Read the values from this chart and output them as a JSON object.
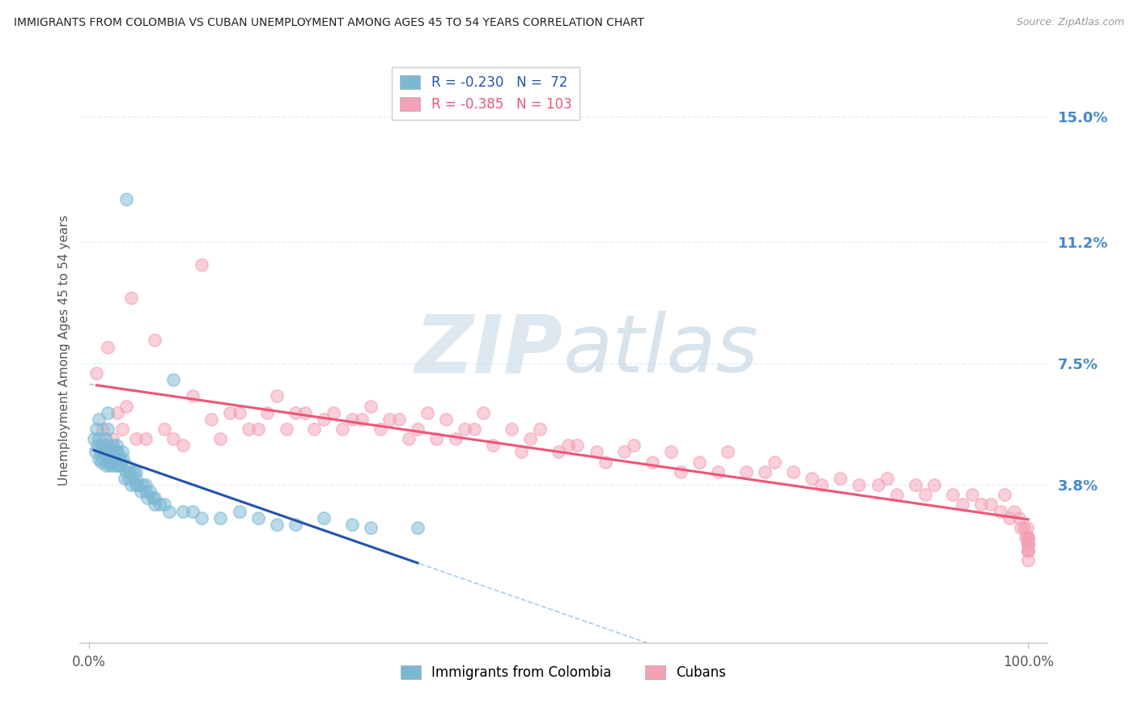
{
  "title": "IMMIGRANTS FROM COLOMBIA VS CUBAN UNEMPLOYMENT AMONG AGES 45 TO 54 YEARS CORRELATION CHART",
  "source": "Source: ZipAtlas.com",
  "ylabel": "Unemployment Among Ages 45 to 54 years",
  "xlim": [
    -0.01,
    1.02
  ],
  "ylim": [
    -0.01,
    0.168
  ],
  "right_ytick_labels": [
    "3.8%",
    "7.5%",
    "11.2%",
    "15.0%"
  ],
  "right_ytick_values": [
    0.038,
    0.075,
    0.112,
    0.15
  ],
  "xtick_labels": [
    "0.0%",
    "100.0%"
  ],
  "xtick_values": [
    0.0,
    1.0
  ],
  "blue_color": "#7BB8D4",
  "pink_color": "#F4A0B5",
  "regression_blue_color": "#2255AA",
  "regression_pink_color": "#EE5577",
  "dashed_color": "#AACCEE",
  "background_color": "#FFFFFF",
  "grid_color": "#DDEEFF",
  "title_color": "#222222",
  "source_color": "#999999",
  "axis_label_color": "#555555",
  "right_label_color": "#4488CC",
  "watermark_zip_color": "#CCDDEE",
  "watermark_atlas_color": "#AABBCC",
  "colombia_x": [
    0.005,
    0.007,
    0.008,
    0.009,
    0.01,
    0.01,
    0.01,
    0.012,
    0.013,
    0.014,
    0.015,
    0.016,
    0.017,
    0.018,
    0.019,
    0.02,
    0.02,
    0.02,
    0.02,
    0.022,
    0.023,
    0.024,
    0.025,
    0.026,
    0.027,
    0.028,
    0.029,
    0.03,
    0.03,
    0.03,
    0.032,
    0.033,
    0.034,
    0.035,
    0.036,
    0.038,
    0.04,
    0.04,
    0.04,
    0.042,
    0.043,
    0.045,
    0.047,
    0.05,
    0.05,
    0.05,
    0.052,
    0.055,
    0.057,
    0.06,
    0.06,
    0.062,
    0.065,
    0.068,
    0.07,
    0.07,
    0.075,
    0.08,
    0.085,
    0.09,
    0.1,
    0.11,
    0.12,
    0.14,
    0.16,
    0.18,
    0.2,
    0.22,
    0.25,
    0.28,
    0.3,
    0.35
  ],
  "colombia_y": [
    0.052,
    0.048,
    0.055,
    0.05,
    0.046,
    0.052,
    0.058,
    0.048,
    0.045,
    0.05,
    0.046,
    0.048,
    0.052,
    0.044,
    0.048,
    0.045,
    0.05,
    0.055,
    0.06,
    0.044,
    0.046,
    0.048,
    0.05,
    0.046,
    0.044,
    0.048,
    0.05,
    0.046,
    0.044,
    0.048,
    0.044,
    0.046,
    0.044,
    0.048,
    0.046,
    0.04,
    0.125,
    0.042,
    0.044,
    0.04,
    0.042,
    0.038,
    0.042,
    0.038,
    0.04,
    0.042,
    0.038,
    0.036,
    0.038,
    0.036,
    0.038,
    0.034,
    0.036,
    0.034,
    0.032,
    0.034,
    0.032,
    0.032,
    0.03,
    0.07,
    0.03,
    0.03,
    0.028,
    0.028,
    0.03,
    0.028,
    0.026,
    0.026,
    0.028,
    0.026,
    0.025,
    0.025
  ],
  "cubans_x": [
    0.008,
    0.015,
    0.02,
    0.025,
    0.03,
    0.035,
    0.04,
    0.045,
    0.05,
    0.06,
    0.07,
    0.08,
    0.09,
    0.1,
    0.11,
    0.12,
    0.13,
    0.14,
    0.15,
    0.16,
    0.17,
    0.18,
    0.19,
    0.2,
    0.21,
    0.22,
    0.23,
    0.24,
    0.25,
    0.26,
    0.27,
    0.28,
    0.29,
    0.3,
    0.31,
    0.32,
    0.33,
    0.34,
    0.35,
    0.36,
    0.37,
    0.38,
    0.39,
    0.4,
    0.41,
    0.42,
    0.43,
    0.45,
    0.46,
    0.47,
    0.48,
    0.5,
    0.51,
    0.52,
    0.54,
    0.55,
    0.57,
    0.58,
    0.6,
    0.62,
    0.63,
    0.65,
    0.67,
    0.68,
    0.7,
    0.72,
    0.73,
    0.75,
    0.77,
    0.78,
    0.8,
    0.82,
    0.84,
    0.85,
    0.86,
    0.88,
    0.89,
    0.9,
    0.92,
    0.93,
    0.94,
    0.95,
    0.96,
    0.97,
    0.975,
    0.98,
    0.985,
    0.99,
    0.992,
    0.995,
    0.997,
    0.999,
    1.0,
    1.0,
    1.0,
    1.0,
    1.0,
    1.0,
    1.0,
    1.0,
    1.0,
    1.0,
    1.0
  ],
  "cubans_y": [
    0.072,
    0.055,
    0.08,
    0.052,
    0.06,
    0.055,
    0.062,
    0.095,
    0.052,
    0.052,
    0.082,
    0.055,
    0.052,
    0.05,
    0.065,
    0.105,
    0.058,
    0.052,
    0.06,
    0.06,
    0.055,
    0.055,
    0.06,
    0.065,
    0.055,
    0.06,
    0.06,
    0.055,
    0.058,
    0.06,
    0.055,
    0.058,
    0.058,
    0.062,
    0.055,
    0.058,
    0.058,
    0.052,
    0.055,
    0.06,
    0.052,
    0.058,
    0.052,
    0.055,
    0.055,
    0.06,
    0.05,
    0.055,
    0.048,
    0.052,
    0.055,
    0.048,
    0.05,
    0.05,
    0.048,
    0.045,
    0.048,
    0.05,
    0.045,
    0.048,
    0.042,
    0.045,
    0.042,
    0.048,
    0.042,
    0.042,
    0.045,
    0.042,
    0.04,
    0.038,
    0.04,
    0.038,
    0.038,
    0.04,
    0.035,
    0.038,
    0.035,
    0.038,
    0.035,
    0.032,
    0.035,
    0.032,
    0.032,
    0.03,
    0.035,
    0.028,
    0.03,
    0.028,
    0.025,
    0.025,
    0.022,
    0.025,
    0.022,
    0.022,
    0.02,
    0.022,
    0.02,
    0.02,
    0.018,
    0.018,
    0.02,
    0.018,
    0.015
  ]
}
